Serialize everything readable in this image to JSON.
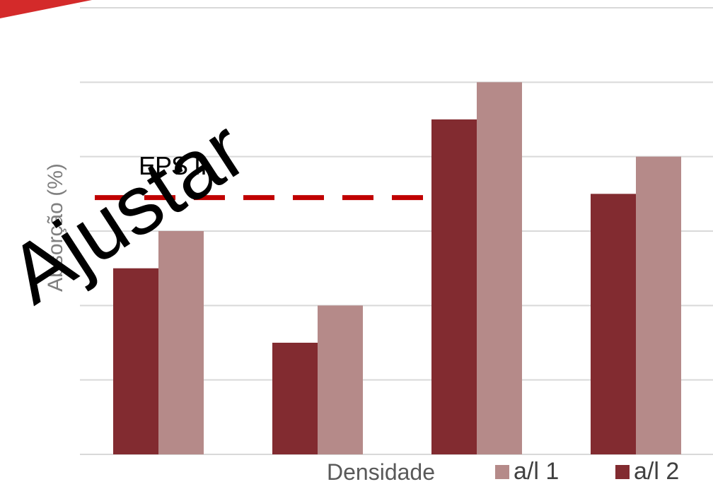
{
  "chart_data": {
    "type": "bar",
    "categories": [
      "",
      "",
      "",
      ""
    ],
    "series": [
      {
        "name": "a/l 2",
        "values": [
          2.5,
          1.5,
          4.5,
          3.5
        ],
        "color": "#822b30"
      },
      {
        "name": "a/l 1",
        "values": [
          3,
          2,
          5,
          4
        ],
        "color": "#b58a89"
      }
    ],
    "reference_line": {
      "label": "EPS II",
      "value": 3.45,
      "x_end": 2,
      "color": "#c00000",
      "style": "dashed"
    },
    "title": "",
    "xlabel": "Densidade",
    "ylabel": "Absorção (%)",
    "ylim": [
      0,
      6
    ],
    "y_tick_step": 1,
    "grid": true,
    "legend": [
      {
        "label": "a/l 1",
        "color": "#b58a89"
      },
      {
        "label": "a/l 2",
        "color": "#822b30"
      }
    ],
    "legend_position": "bottom-right"
  },
  "overlay_text": "Ajustar",
  "accent_color": "#d42a2a"
}
